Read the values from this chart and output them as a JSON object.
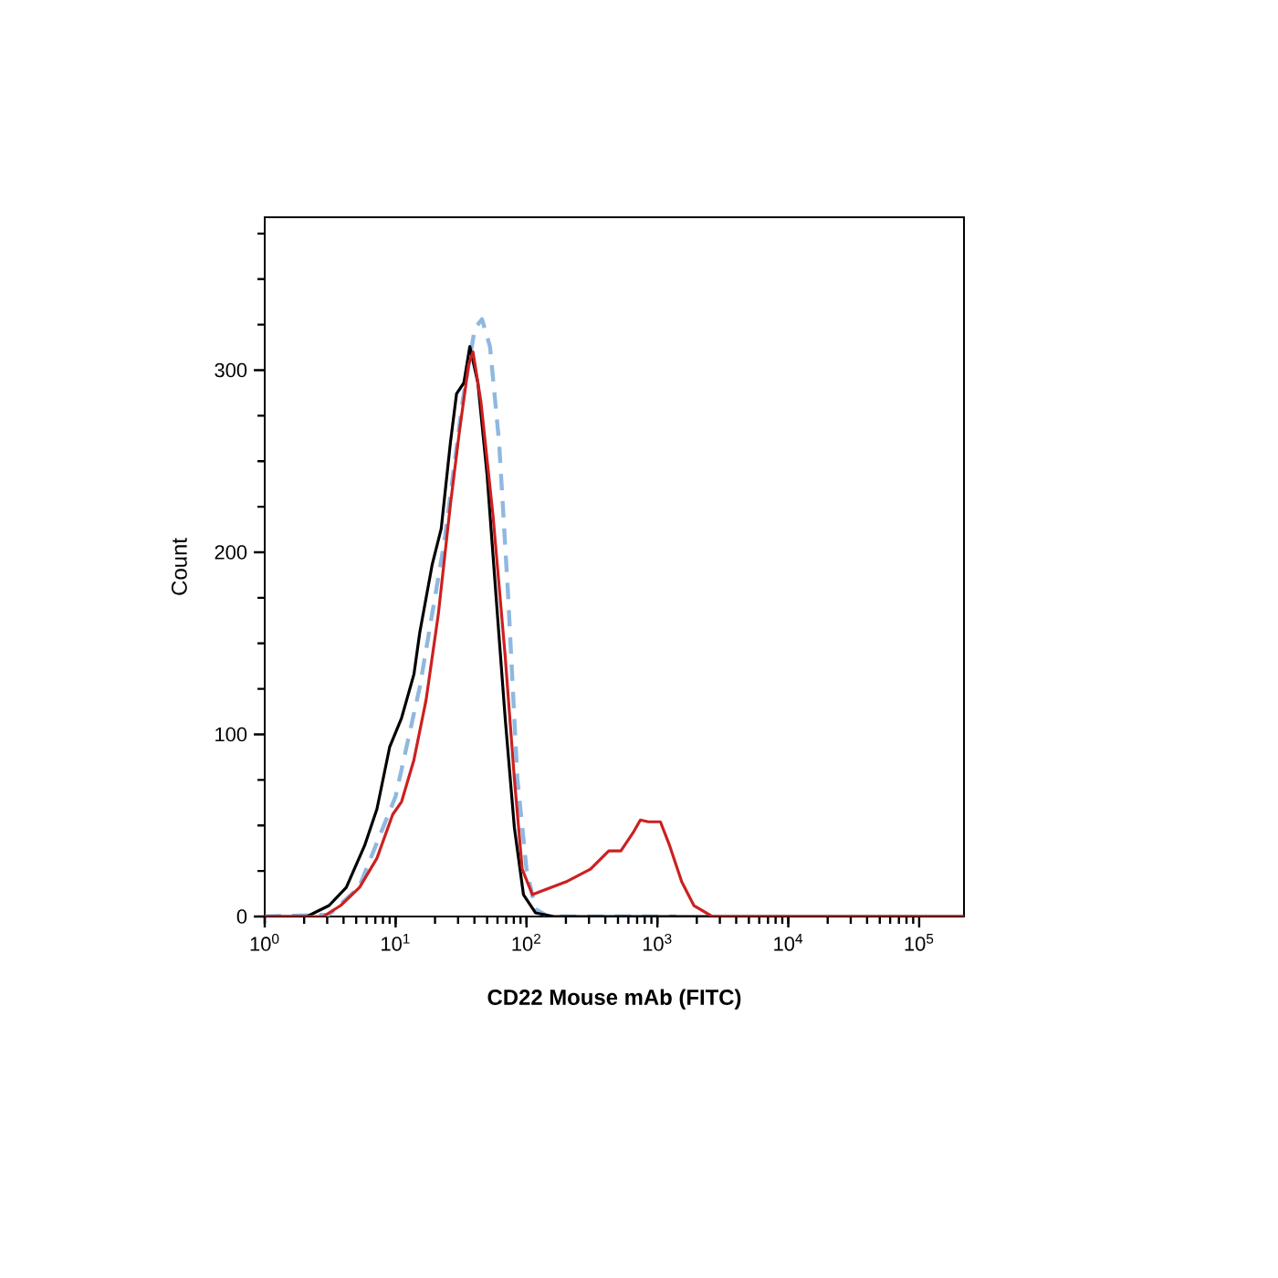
{
  "chart_data": {
    "type": "line",
    "xlabel": "CD22 Mouse mAb (FITC)",
    "ylabel": "Count",
    "log": "x",
    "grid": false,
    "marker": "none",
    "xlim": [
      1,
      220000
    ],
    "ylim": [
      0,
      384
    ],
    "xticks": [
      {
        "value": 1,
        "label": "10$^{0}$"
      },
      {
        "value": 10,
        "label": "10$^{1}$"
      },
      {
        "value": 100,
        "label": "10$^{2}$"
      },
      {
        "value": 1000,
        "label": "10$^{3}$"
      },
      {
        "value": 10000,
        "label": "10$^{4}$"
      },
      {
        "value": 100000,
        "label": "10$^{5}$"
      }
    ],
    "yticks": [
      0,
      {
        "value": 25,
        "label": null
      },
      {
        "value": 50,
        "label": null
      },
      {
        "value": 75,
        "label": null
      },
      100,
      {
        "value": 125,
        "label": null
      },
      {
        "value": 150,
        "label": null
      },
      {
        "value": 175,
        "label": null
      },
      200,
      {
        "value": 225,
        "label": null
      },
      {
        "value": 250,
        "label": null
      },
      {
        "value": 275,
        "label": null
      },
      300,
      {
        "value": 325,
        "label": null
      },
      {
        "value": 350,
        "label": null
      },
      {
        "value": 375,
        "label": null
      }
    ],
    "series": [
      {
        "color": "#8fb8e0",
        "line_style": "dashed",
        "x": [
          1,
          3.1,
          5.25,
          10,
          15.3,
          23.6,
          32.5,
          40.3,
          45.7,
          52.6,
          61.8,
          72.4,
          85.1,
          100,
          117,
          146,
          1400
        ],
        "values": [
          0,
          1,
          16,
          66,
          126,
          206,
          283,
          323,
          328,
          313,
          260,
          176,
          76,
          26,
          4,
          0,
          0
        ]
      },
      {
        "color": "#000000",
        "line_style": "solid",
        "x": [
          1,
          2.1,
          3.1,
          4.2,
          5.8,
          7.2,
          9.0,
          11.1,
          13.8,
          15.3,
          19.0,
          22.3,
          26.2,
          29.2,
          33.2,
          36.9,
          42.5,
          49.9,
          58.5,
          68.7,
          80.7,
          94.8,
          117,
          162,
          220000
        ],
        "values": [
          0,
          0,
          6,
          16,
          39,
          59,
          93,
          109,
          133,
          156,
          193,
          213,
          260,
          287,
          293,
          313,
          293,
          243,
          176,
          109,
          49,
          12,
          2,
          0,
          0
        ]
      },
      {
        "color": "#cc2020",
        "line_style": "solid",
        "x": [
          1,
          2.8,
          3.8,
          5.3,
          7.2,
          9.5,
          11.1,
          13.8,
          17.1,
          21.2,
          26.2,
          30.8,
          36.1,
          39.0,
          44.8,
          55.5,
          68.7,
          80.7,
          92.7,
          111,
          131,
          200,
          308,
          425,
          526,
          652,
          741,
          851,
          1054,
          1239,
          1535,
          1901,
          2624,
          220000
        ],
        "values": [
          0,
          0,
          6,
          16,
          32,
          56,
          63,
          86,
          119,
          166,
          226,
          267,
          303,
          310,
          283,
          220,
          143,
          76,
          26,
          12,
          14,
          19,
          26,
          36,
          36,
          46,
          53,
          52,
          52,
          39,
          19,
          6,
          0,
          0
        ]
      }
    ]
  }
}
